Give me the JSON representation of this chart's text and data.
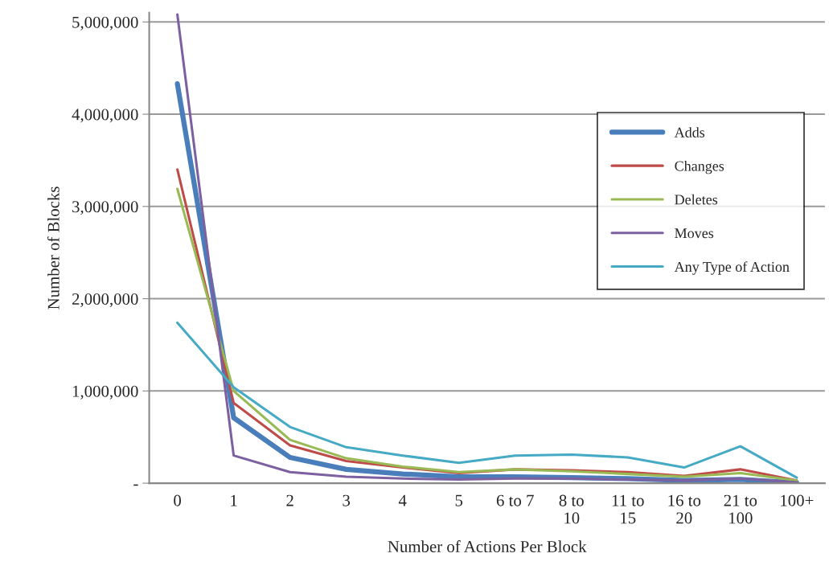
{
  "chart_data": {
    "type": "line",
    "xlabel": "Number of Actions Per Block",
    "ylabel": "Number of Blocks",
    "categories": [
      "0",
      "1",
      "2",
      "3",
      "4",
      "5",
      "6 to 7",
      "8 to\n10",
      "11 to\n15",
      "16 to\n20",
      "21 to\n100",
      "100+"
    ],
    "series": [
      {
        "name": "Adds",
        "color": "#4a7ebb",
        "values": [
          4330000,
          710000,
          280000,
          150000,
          100000,
          70000,
          70000,
          60000,
          50000,
          30000,
          40000,
          5000
        ]
      },
      {
        "name": "Changes",
        "color": "#be4b48",
        "values": [
          3400000,
          870000,
          410000,
          240000,
          170000,
          110000,
          150000,
          140000,
          120000,
          80000,
          150000,
          30000
        ]
      },
      {
        "name": "Deletes",
        "color": "#98b954",
        "values": [
          3190000,
          1000000,
          470000,
          270000,
          180000,
          120000,
          150000,
          130000,
          100000,
          70000,
          110000,
          30000
        ]
      },
      {
        "name": "Moves",
        "color": "#7d60a0",
        "values": [
          5080000,
          300000,
          120000,
          70000,
          50000,
          40000,
          50000,
          50000,
          40000,
          30000,
          50000,
          10000
        ]
      },
      {
        "name": "Any Type of Action",
        "color": "#46aac5",
        "values": [
          1740000,
          1040000,
          610000,
          390000,
          300000,
          220000,
          300000,
          310000,
          280000,
          170000,
          400000,
          60000
        ]
      }
    ],
    "ylim": [
      0,
      5100000
    ],
    "yticks": [
      {
        "value": 0,
        "label": "-"
      },
      {
        "value": 1000000,
        "label": "1,000,000"
      },
      {
        "value": 2000000,
        "label": "2,000,000"
      },
      {
        "value": 3000000,
        "label": "3,000,000"
      },
      {
        "value": 4000000,
        "label": "4,000,000"
      },
      {
        "value": 5000000,
        "label": "5,000,000"
      }
    ],
    "grid": "y",
    "legend": "right",
    "marker": "none",
    "line_style": "solid"
  }
}
